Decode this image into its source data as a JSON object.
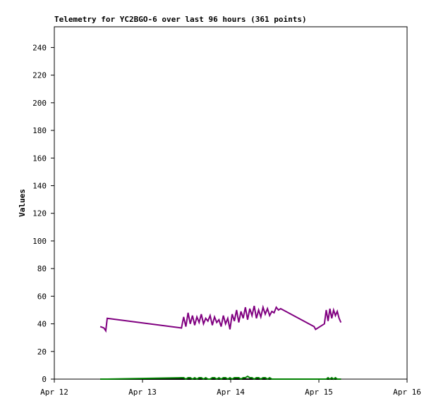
{
  "chart_data": {
    "type": "line",
    "title": "Telemetry for YC2BGO-6 over last 96 hours (361 points)",
    "y_label": "Values",
    "x": [
      12.5,
      13.5,
      14,
      14.4,
      34.6,
      35.2,
      35.8,
      36.4,
      37,
      37.6,
      38.2,
      38.8,
      39.4,
      40,
      40.6,
      41.2,
      41.8,
      42.4,
      43,
      43.6,
      44.2,
      44.8,
      45.4,
      46,
      46.6,
      47.2,
      47.8,
      48.4,
      49,
      49.6,
      50.2,
      50.8,
      51.4,
      52,
      52.6,
      53.2,
      53.8,
      54.4,
      55,
      55.6,
      56.2,
      56.8,
      57.4,
      58,
      58.6,
      59.2,
      59.8,
      60.4,
      61,
      61.6,
      70.7,
      71.1,
      73.5,
      74,
      74.5,
      75,
      75.5,
      76,
      76.5,
      77,
      77.5,
      78
    ],
    "series": [
      {
        "color": "#000000",
        "values": [
          0,
          0,
          0,
          0,
          0,
          0,
          0,
          0,
          0,
          0,
          0,
          0,
          0,
          0,
          0,
          0,
          0,
          0,
          0,
          0,
          0,
          0,
          0,
          0,
          0,
          0,
          0,
          0,
          0,
          0,
          0,
          0,
          0,
          0,
          0,
          0,
          0,
          0,
          0,
          0,
          0,
          0,
          0,
          0,
          0,
          0,
          0,
          0,
          0,
          0,
          0,
          0,
          0,
          0,
          0,
          0,
          0,
          0,
          0,
          0,
          0,
          0
        ]
      },
      {
        "color": "#008000",
        "values": [
          0,
          0,
          0,
          0,
          1,
          1,
          0,
          1,
          1,
          0,
          1,
          0,
          1,
          1,
          0,
          1,
          0,
          0,
          1,
          1,
          0,
          1,
          0,
          1,
          1,
          0,
          1,
          0,
          1,
          1,
          1,
          0,
          1,
          1,
          2,
          1,
          1,
          0,
          1,
          1,
          0,
          1,
          1,
          0,
          1,
          0,
          0,
          0,
          0,
          0,
          0,
          0,
          0,
          0,
          1,
          0,
          1,
          0,
          1,
          0,
          0,
          0
        ]
      },
      {
        "color": "#800080",
        "values": [
          38,
          37,
          35,
          44,
          37,
          45,
          38,
          48,
          40,
          46,
          39,
          45,
          41,
          47,
          40,
          44,
          42,
          46,
          39,
          45,
          41,
          43,
          38,
          46,
          40,
          44,
          36,
          47,
          42,
          50,
          41,
          49,
          44,
          52,
          43,
          51,
          46,
          53,
          44,
          50,
          45,
          52,
          47,
          51,
          46,
          49,
          48,
          52,
          50,
          51,
          38,
          36,
          40,
          50,
          42,
          51,
          44,
          50,
          46,
          49,
          44,
          41
        ]
      }
    ],
    "xlim": [
      0,
      96
    ],
    "xticks": [
      {
        "value": 0,
        "label": "Apr 12"
      },
      {
        "value": 24,
        "label": "Apr 13"
      },
      {
        "value": 48,
        "label": "Apr 14"
      },
      {
        "value": 72,
        "label": "Apr 15"
      },
      {
        "value": 96,
        "label": "Apr 16"
      }
    ],
    "ylim": [
      0,
      255
    ],
    "yticks": [
      0,
      20,
      40,
      60,
      80,
      100,
      120,
      140,
      160,
      180,
      200,
      220,
      240
    ],
    "grid": false
  }
}
